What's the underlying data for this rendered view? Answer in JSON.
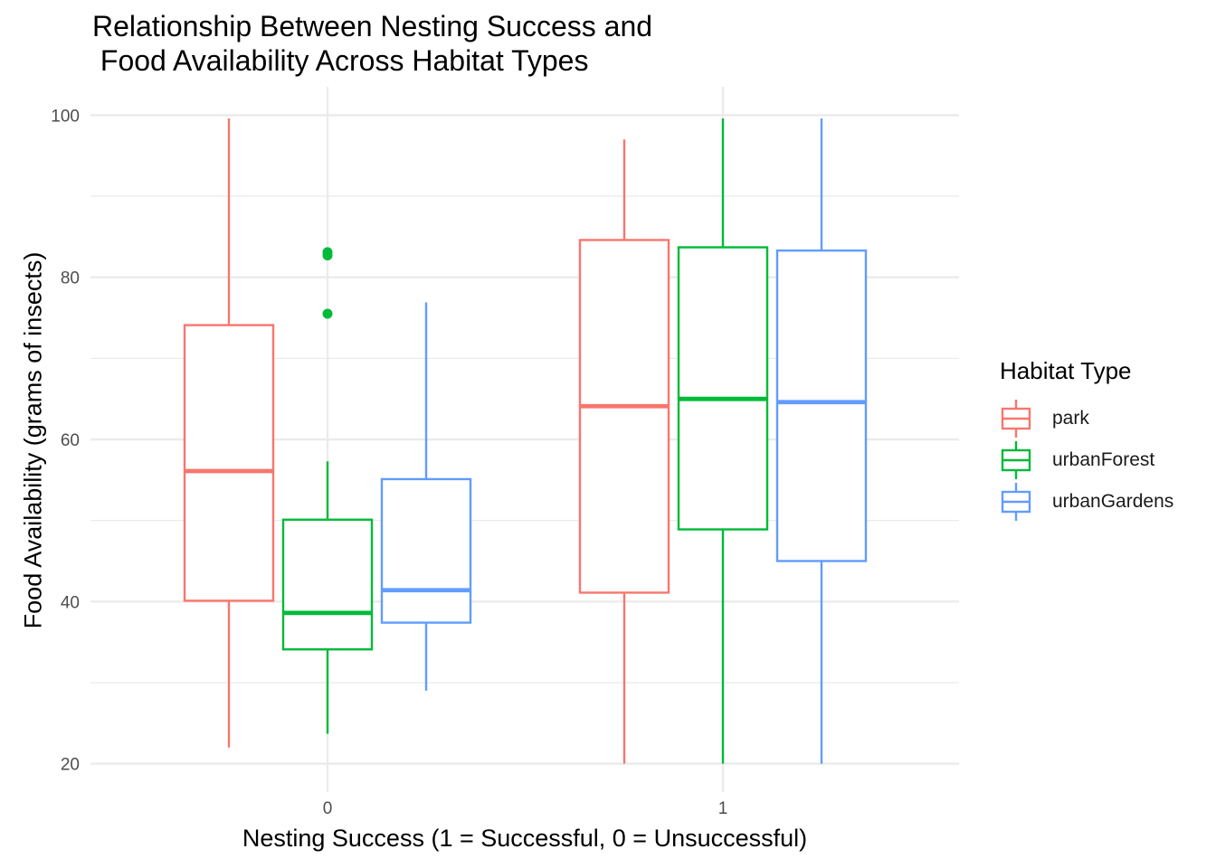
{
  "chart_data": {
    "type": "boxplot",
    "title": "Relationship Between Nesting Success and\n Food Availability Across Habitat Types",
    "xlabel": "Nesting Success (1 = Successful, 0 = Unsuccessful)",
    "ylabel": "Food Availability (grams of insects)",
    "categories": [
      "0",
      "1"
    ],
    "ylim": [
      16.5,
      103.5
    ],
    "yticks": [
      20,
      40,
      60,
      80,
      100
    ],
    "grid": true,
    "legend": {
      "title": "Habitat Type",
      "position": "right"
    },
    "series": [
      {
        "name": "park",
        "color": "#F8766D",
        "boxes": [
          {
            "category": "0",
            "whisker_low": 22,
            "q1": 40.1,
            "median": 56.1,
            "q3": 74.1,
            "whisker_high": 99.6,
            "outliers": []
          },
          {
            "category": "1",
            "whisker_low": 20,
            "q1": 41.1,
            "median": 64.1,
            "q3": 84.6,
            "whisker_high": 97,
            "outliers": []
          }
        ]
      },
      {
        "name": "urbanForest",
        "color": "#00BA38",
        "boxes": [
          {
            "category": "0",
            "whisker_low": 23.7,
            "q1": 34.1,
            "median": 38.6,
            "q3": 50.1,
            "whisker_high": 57.3,
            "outliers": [
              75.5,
              82.7,
              83.1
            ]
          },
          {
            "category": "1",
            "whisker_low": 20,
            "q1": 48.9,
            "median": 65,
            "q3": 83.7,
            "whisker_high": 99.6,
            "outliers": []
          }
        ]
      },
      {
        "name": "urbanGardens",
        "color": "#619CFF",
        "boxes": [
          {
            "category": "0",
            "whisker_low": 29,
            "q1": 37.4,
            "median": 41.4,
            "q3": 55.1,
            "whisker_high": 76.9,
            "outliers": []
          },
          {
            "category": "1",
            "whisker_low": 20,
            "q1": 45,
            "median": 64.6,
            "q3": 83.3,
            "whisker_high": 99.6,
            "outliers": []
          }
        ]
      }
    ]
  }
}
